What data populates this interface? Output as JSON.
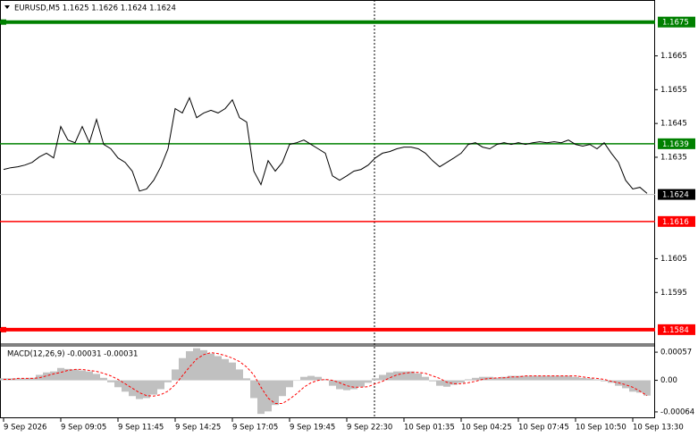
{
  "chart_data": [
    {
      "type": "line",
      "title": "EURUSD,M5  1.1625 1.1626 1.1624 1.1624",
      "color": "#000000",
      "grid": false,
      "categories": [
        "9 Sep 2026",
        null,
        null,
        null,
        null,
        null,
        null,
        null,
        "9 Sep 09:05",
        null,
        null,
        null,
        null,
        null,
        null,
        null,
        "9 Sep 11:45",
        null,
        null,
        null,
        null,
        null,
        null,
        null,
        "9 Sep 14:25",
        null,
        null,
        null,
        null,
        null,
        null,
        null,
        "9 Sep 17:05",
        null,
        null,
        null,
        null,
        null,
        null,
        null,
        "9 Sep 19:45",
        null,
        null,
        null,
        null,
        null,
        null,
        null,
        "9 Sep 22:30",
        null,
        null,
        null,
        null,
        null,
        null,
        null,
        "10 Sep 01:35",
        null,
        null,
        null,
        null,
        null,
        null,
        null,
        "10 Sep 04:25",
        null,
        null,
        null,
        null,
        null,
        null,
        null,
        "10 Sep 07:45",
        null,
        null,
        null,
        null,
        null,
        null,
        null,
        "10 Sep 10:50",
        null,
        null,
        null,
        null,
        null,
        null,
        null,
        "10 Sep 13:30",
        null,
        null
      ],
      "values": [
        1.16314,
        1.16319,
        1.16322,
        1.16327,
        1.16335,
        1.16351,
        1.16362,
        1.16348,
        1.16441,
        1.16401,
        1.16393,
        1.16441,
        1.16393,
        1.16462,
        1.16388,
        1.16375,
        1.16348,
        1.16335,
        1.16309,
        1.1625,
        1.16256,
        1.16282,
        1.16322,
        1.16375,
        1.16494,
        1.16481,
        1.16526,
        1.16467,
        1.16481,
        1.16489,
        1.16481,
        1.16494,
        1.1652,
        1.16467,
        1.16454,
        1.16309,
        1.16269,
        1.1634,
        1.16309,
        1.16335,
        1.16388,
        1.16393,
        1.16401,
        1.16388,
        1.16375,
        1.16362,
        1.16295,
        1.16282,
        1.16295,
        1.16309,
        1.16314,
        1.16327,
        1.16348,
        1.16362,
        1.16367,
        1.16375,
        1.1638,
        1.1638,
        1.16375,
        1.16362,
        1.1634,
        1.16322,
        1.16335,
        1.16348,
        1.16362,
        1.16388,
        1.16393,
        1.1638,
        1.16375,
        1.16388,
        1.16393,
        1.16388,
        1.16393,
        1.16388,
        1.16393,
        1.16396,
        1.16393,
        1.16396,
        1.16393,
        1.16401,
        1.16388,
        1.16383,
        1.16388,
        1.16375,
        1.16393,
        1.16362,
        1.16335,
        1.16282,
        1.16256,
        1.16261,
        1.16243
      ],
      "ylim": [
        1.158,
        1.1681
      ],
      "yticks": [
        1.1665,
        1.1655,
        1.1645,
        1.1635,
        1.1605,
        1.1595
      ],
      "levels": [
        {
          "value": 1.1675,
          "color": "#008000",
          "thick": true
        },
        {
          "value": 1.1639,
          "color": "#008000",
          "thick": false
        },
        {
          "value": 1.1616,
          "color": "#ff0000",
          "thick": false
        },
        {
          "value": 1.1584,
          "color": "#ff0000",
          "thick": true
        }
      ],
      "last_price": 1.1624
    },
    {
      "type": "macd",
      "title": "MACD(12,26,9) -0.00031 -0.00031",
      "grid": false,
      "series": [
        {
          "color": "#c0c0c0",
          "kind": "bar",
          "values": [
            4e-05,
            4e-05,
            4e-05,
            4e-05,
            5e-05,
            0.00011,
            0.00016,
            0.00018,
            0.00025,
            0.00023,
            0.00022,
            0.0002,
            0.00018,
            0.00013,
            5e-05,
            -4e-05,
            -0.00014,
            -0.00023,
            -0.00032,
            -0.00038,
            -0.00036,
            -0.00029,
            -0.00018,
            -4e-05,
            0.00022,
            0.00045,
            0.00059,
            0.00065,
            0.00061,
            0.00054,
            0.00049,
            0.00043,
            0.00036,
            0.00022,
            4e-05,
            -0.00036,
            -0.00068,
            -0.00063,
            -0.0005,
            -0.00032,
            -0.00014,
            0,
            7e-05,
            9e-05,
            7e-05,
            2e-05,
            -0.00011,
            -0.00018,
            -0.0002,
            -0.00018,
            -0.00013,
            -5e-05,
            4e-05,
            0.00011,
            0.00016,
            0.00018,
            0.00018,
            0.00018,
            0.00014,
            7e-05,
            -2e-05,
            -0.00011,
            -0.00013,
            -9e-05,
            -5e-05,
            2e-05,
            5e-05,
            7e-05,
            7e-05,
            5e-05,
            7e-05,
            9e-05,
            9e-05,
            9e-05,
            9e-05,
            9e-05,
            9e-05,
            9e-05,
            9e-05,
            9e-05,
            7e-05,
            5e-05,
            4e-05,
            2e-05,
            -2e-05,
            -5e-05,
            -0.00011,
            -0.00016,
            -0.00023,
            -0.00025,
            -0.00031
          ]
        },
        {
          "color": "#ff0000",
          "kind": "line",
          "values": [
            2e-05,
            2e-05,
            4e-05,
            4e-05,
            4e-05,
            5e-05,
            9e-05,
            0.00013,
            0.00016,
            0.0002,
            0.00022,
            0.00022,
            0.0002,
            0.00018,
            0.00014,
            9e-05,
            2e-05,
            -7e-05,
            -0.00016,
            -0.00025,
            -0.00031,
            -0.00032,
            -0.00029,
            -0.00022,
            -9e-05,
            9e-05,
            0.00027,
            0.00043,
            0.00052,
            0.00056,
            0.00054,
            0.0005,
            0.00045,
            0.00038,
            0.00027,
            0.00011,
            -0.00014,
            -0.00036,
            -0.00047,
            -0.00047,
            -0.00038,
            -0.00027,
            -0.00014,
            -5e-05,
            0,
            2e-05,
            0,
            -5e-05,
            -0.00011,
            -0.00014,
            -0.00014,
            -0.00013,
            -7e-05,
            -2e-05,
            5e-05,
            0.00011,
            0.00014,
            0.00016,
            0.00016,
            0.00014,
            9e-05,
            4e-05,
            -4e-05,
            -7e-05,
            -7e-05,
            -5e-05,
            -2e-05,
            2e-05,
            4e-05,
            5e-05,
            5e-05,
            7e-05,
            7e-05,
            9e-05,
            9e-05,
            9e-05,
            9e-05,
            9e-05,
            9e-05,
            9e-05,
            9e-05,
            7e-05,
            5e-05,
            4e-05,
            2e-05,
            -2e-05,
            -5e-05,
            -9e-05,
            -0.00014,
            -0.00022,
            -0.00031
          ]
        }
      ],
      "ylim": [
        -0.00075,
        0.00068
      ],
      "yticks": [
        0.00057,
        {
          "value": 0,
          "label": "0.00"
        },
        -0.00064
      ]
    }
  ]
}
